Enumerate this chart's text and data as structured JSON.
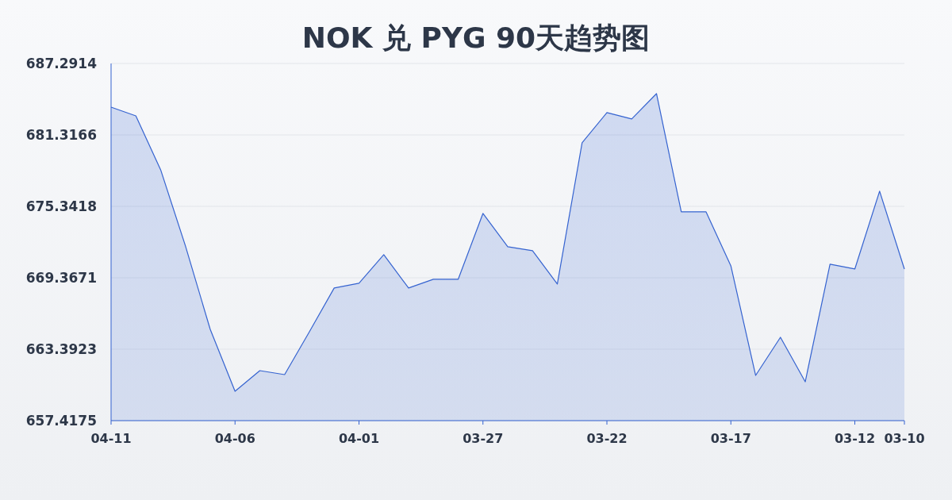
{
  "chart_data": {
    "type": "area",
    "title": "NOK 兑 PYG 90天趋势图",
    "categories": [
      "04-11",
      null,
      null,
      null,
      null,
      "04-06",
      null,
      null,
      null,
      null,
      "04-01",
      null,
      null,
      null,
      null,
      "03-27",
      null,
      null,
      null,
      null,
      "03-22",
      null,
      null,
      null,
      null,
      "03-17",
      null,
      null,
      null,
      null,
      "03-12",
      null,
      "03-10"
    ],
    "series": [
      {
        "color": "#3563d0",
        "values": [
          683.64,
          682.91,
          678.4,
          672.03,
          665.05,
          659.87,
          661.6,
          661.27,
          664.85,
          668.51,
          668.91,
          671.3,
          668.51,
          669.24,
          669.24,
          674.75,
          671.96,
          671.63,
          668.84,
          680.66,
          683.18,
          682.65,
          684.77,
          674.88,
          674.88,
          670.37,
          661.2,
          664.39,
          660.67,
          670.5,
          670.1,
          676.61,
          670.1
        ]
      }
    ],
    "ylim": [
      657.4175,
      687.2914
    ],
    "yticks": [
      657.4175,
      663.3923,
      669.3671,
      675.3418,
      681.3166,
      687.2914
    ],
    "grid": "y"
  }
}
